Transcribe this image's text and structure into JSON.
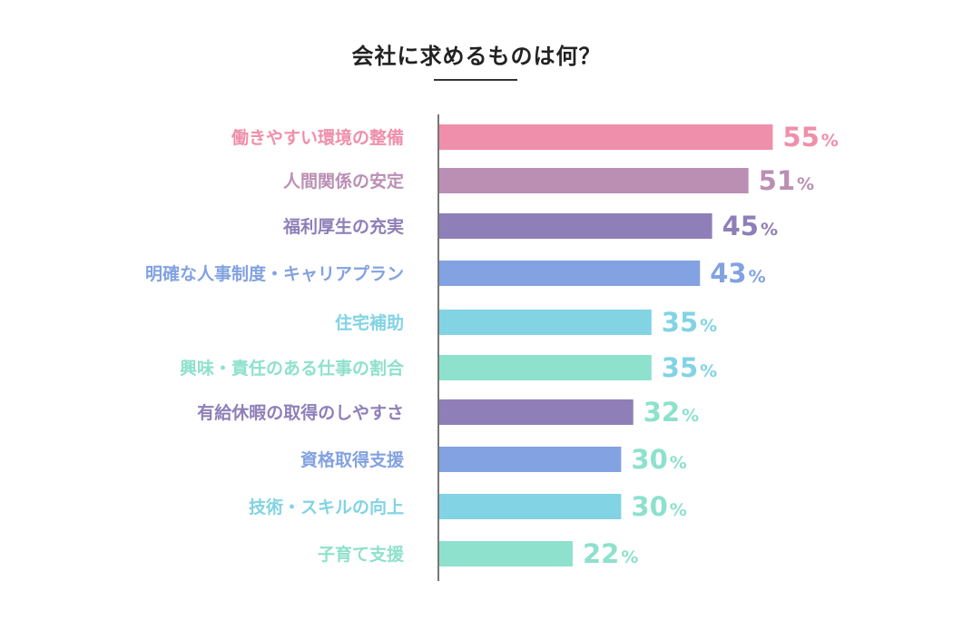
{
  "title": "会社に求めるものは何？",
  "chart_data": {
    "type": "bar",
    "orientation": "horizontal",
    "title": "会社に求めるものは何？",
    "unit": "%",
    "xlim": [
      0,
      100
    ],
    "categories": [
      "働きやすい環境の整備",
      "人間関係の安定",
      "福利厚生の充実",
      "明確な人事制度・キャリアプラン",
      "住宅補助",
      "興味・責任のある仕事の割合",
      "有給休暇の取得のしやすさ",
      "資格取得支援",
      "技術・スキルの向上",
      "子育て支援"
    ],
    "values": [
      55,
      51,
      45,
      43,
      35,
      35,
      32,
      30,
      30,
      22
    ],
    "colors": [
      "#f08fab",
      "#bb8fb4",
      "#8f7fb8",
      "#82a2e1",
      "#82d3e4",
      "#8ee1cc",
      "#8f7fb8",
      "#82a2e1",
      "#82d3e4",
      "#8ee1cc"
    ],
    "label_colors": [
      "#f08fab",
      "#bb8fb4",
      "#8f7fb8",
      "#82a2e1",
      "#82d3e4",
      "#8ee1cc",
      "#8f7fb8",
      "#82a2e1",
      "#82d3e4",
      "#8ee1cc"
    ],
    "value_label_colors": [
      "#f08fab",
      "#bb8fb4",
      "#8f7fb8",
      "#82a2e1",
      "#82d3e4",
      "#82d3e4",
      "#8ee1cc",
      "#8ee1cc",
      "#8ee1cc",
      "#8ee1cc"
    ],
    "axis_color": "#777777",
    "grid": false,
    "legend": "none"
  }
}
